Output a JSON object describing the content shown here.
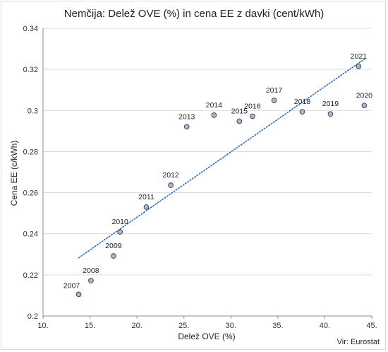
{
  "chart_data": {
    "type": "scatter",
    "title": "Nemčija: Delež OVE (%) in cena EE z davki (cent/kWh)",
    "xlabel": "Delež OVE (%)",
    "ylabel": "Cena EE (c/kWh)",
    "xlim": [
      10,
      45
    ],
    "ylim": [
      0.2,
      0.34
    ],
    "x_ticks": [
      "10.",
      "15.",
      "20.",
      "25.",
      "30.",
      "35.",
      "40.",
      "45."
    ],
    "y_ticks": [
      "0.2",
      "0.22",
      "0.24",
      "0.26",
      "0.28",
      "0.3",
      "0.32",
      "0.34"
    ],
    "grid": "horizontal",
    "trendline": "linear, dotted",
    "source": "Vir: Eurostat",
    "points": [
      {
        "label": "2007",
        "x": 13.8,
        "y": 0.2105
      },
      {
        "label": "2008",
        "x": 15.1,
        "y": 0.2172
      },
      {
        "label": "2009",
        "x": 17.5,
        "y": 0.2292
      },
      {
        "label": "2010",
        "x": 18.2,
        "y": 0.2409
      },
      {
        "label": "2011",
        "x": 21.0,
        "y": 0.253
      },
      {
        "label": "2012",
        "x": 23.6,
        "y": 0.2636
      },
      {
        "label": "2013",
        "x": 25.3,
        "y": 0.2921
      },
      {
        "label": "2014",
        "x": 28.2,
        "y": 0.2977
      },
      {
        "label": "2015",
        "x": 30.9,
        "y": 0.2948
      },
      {
        "label": "2016",
        "x": 32.3,
        "y": 0.2972
      },
      {
        "label": "2017",
        "x": 34.6,
        "y": 0.3049
      },
      {
        "label": "2018",
        "x": 37.6,
        "y": 0.2994
      },
      {
        "label": "2019",
        "x": 40.6,
        "y": 0.2983
      },
      {
        "label": "2020",
        "x": 44.2,
        "y": 0.3024
      },
      {
        "label": "2021",
        "x": 43.6,
        "y": 0.3215
      }
    ]
  },
  "colors": {
    "marker_fill": "#a9b4d6",
    "marker_stroke": "#2b2b2b",
    "trendline": "#2f6ebd",
    "grid": "#d9d9d9"
  }
}
